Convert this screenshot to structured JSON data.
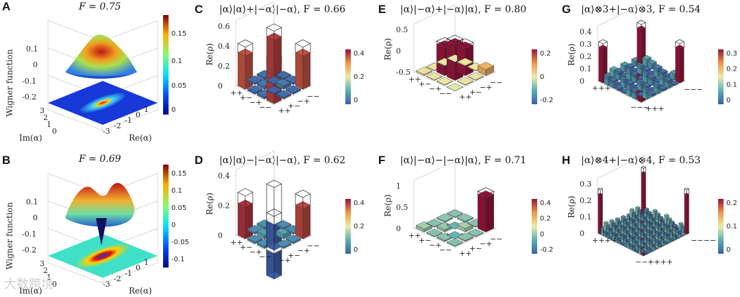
{
  "figure": {
    "watermark": "大数跨境",
    "panels": [
      {
        "id": "A",
        "label": "A",
        "title": "F = 0.75",
        "zlabel": "Wigner function",
        "xlabel": "Re(α)",
        "ylabel": "Im(α)",
        "zticks": [
          "0.1",
          "0",
          "-0.1",
          "-0.2"
        ],
        "xyticks": [
          "3",
          "2",
          "1",
          "0",
          "-1",
          "-2",
          "-3"
        ],
        "cbar_ticks": [
          "0.15",
          "0.1",
          "0.05",
          "0"
        ]
      },
      {
        "id": "B",
        "label": "B",
        "title": "F = 0.69",
        "zlabel": "Wigner function",
        "xlabel": "Re(α)",
        "ylabel": "Im(α)",
        "zticks": [
          "0.1",
          "0",
          "-0.1",
          "-0.2"
        ],
        "xyticks": [
          "3",
          "2",
          "1",
          "0",
          "-1",
          "-2",
          "-3"
        ],
        "cbar_ticks": [
          "0.15",
          "0.1",
          "0.05",
          "0",
          "-0.05",
          "-0.1"
        ]
      },
      {
        "id": "C",
        "label": "C",
        "title": "|α⟩|α⟩+|−α⟩|−α⟩, F = 0.66",
        "zlabel": "Re(ρ)",
        "zticks": [
          "0.6",
          "0.4",
          "0.2",
          "0"
        ],
        "basis": [
          "++",
          "+−",
          "−+",
          "−−"
        ],
        "cbar_ticks": [
          "0.4",
          "0.2",
          "0"
        ]
      },
      {
        "id": "D",
        "label": "D",
        "title": "|α⟩|α⟩−|−α⟩|−α⟩, F = 0.62",
        "zlabel": "Re(ρ)",
        "zticks": [
          "0.4",
          "0.2",
          "0"
        ],
        "basis": [
          "++",
          "+−",
          "−+",
          "−−"
        ],
        "cbar_ticks": [
          "0.4",
          "0.2",
          "0"
        ]
      },
      {
        "id": "E",
        "label": "E",
        "title": "|α⟩|−α⟩+|−α⟩|α⟩, F = 0.80",
        "zlabel": "Re(ρ)",
        "zticks": [
          "0.5",
          "0",
          "-0.5"
        ],
        "basis": [
          "++",
          "+−",
          "−+",
          "−−"
        ],
        "cbar_ticks": [
          "0.2",
          "0",
          "-0.2"
        ]
      },
      {
        "id": "F",
        "label": "F",
        "title": "|α⟩|−α⟩−|−α⟩|α⟩, F = 0.71",
        "zlabel": "Re(ρ)",
        "zticks": [
          "1",
          "0.5",
          "0"
        ],
        "basis": [
          "++",
          "+−",
          "−+",
          "−−"
        ],
        "cbar_ticks": [
          "0.4",
          "0.2",
          "0",
          "-0.2"
        ]
      },
      {
        "id": "G",
        "label": "G",
        "title": "|α⟩⊗3+|−α⟩⊗3, F = 0.54",
        "zlabel": "Re(ρ)",
        "zticks": [
          "0.4",
          "0.3",
          "0.2",
          "0.1",
          "0"
        ],
        "basis": [
          "+++",
          "−−−"
        ],
        "cbar_ticks": [
          "0.3",
          "0.2",
          "0.1",
          "0"
        ]
      },
      {
        "id": "H",
        "label": "H",
        "title": "|α⟩⊗4+|−α⟩⊗4, F = 0.53",
        "zlabel": "Re(ρ)",
        "zticks": [
          "0.3",
          "0.2",
          "0.1",
          "0"
        ],
        "basis": [
          "++++",
          "−−−−"
        ],
        "cbar_ticks": [
          "0.2",
          "0.1",
          "0"
        ]
      }
    ]
  },
  "chart_data": [
    {
      "type": "heatmap",
      "panel": "C",
      "rows": [
        "++",
        "+−",
        "−+",
        "−−"
      ],
      "cols": [
        "++",
        "+−",
        "−+",
        "−−"
      ],
      "values": [
        [
          0.44,
          0.02,
          0.03,
          0.46
        ],
        [
          0.02,
          0.04,
          0.01,
          0.02
        ],
        [
          0.03,
          0.01,
          0.05,
          0.02
        ],
        [
          0.46,
          0.02,
          0.02,
          0.44
        ]
      ]
    },
    {
      "type": "heatmap",
      "panel": "D",
      "rows": [
        "++",
        "+−",
        "−+",
        "−−"
      ],
      "cols": [
        "++",
        "+−",
        "−+",
        "−−"
      ],
      "values": [
        [
          0.42,
          0.02,
          0.03,
          -0.34
        ],
        [
          0.02,
          0.05,
          0.01,
          0.02
        ],
        [
          0.03,
          0.01,
          0.06,
          0.02
        ],
        [
          -0.34,
          0.02,
          0.02,
          0.4
        ]
      ]
    },
    {
      "type": "heatmap",
      "panel": "E",
      "rows": [
        "++",
        "+−",
        "−+",
        "−−"
      ],
      "cols": [
        "++",
        "+−",
        "−+",
        "−−"
      ],
      "values": [
        [
          0.02,
          0.01,
          0.01,
          -0.01
        ],
        [
          0.01,
          0.45,
          0.41,
          0.01
        ],
        [
          0.01,
          0.41,
          0.43,
          0.01
        ],
        [
          -0.01,
          0.01,
          0.01,
          0.1
        ]
      ]
    },
    {
      "type": "heatmap",
      "panel": "F",
      "rows": [
        "++",
        "+−",
        "−+",
        "−−"
      ],
      "cols": [
        "++",
        "+−",
        "−+",
        "−−"
      ],
      "values": [
        [
          0.05,
          0.01,
          0.02,
          0.01
        ],
        [
          0.01,
          0.04,
          -0.03,
          0.02
        ],
        [
          0.02,
          -0.03,
          0.06,
          0.01
        ],
        [
          0.01,
          0.02,
          0.01,
          0.55
        ]
      ]
    }
  ]
}
